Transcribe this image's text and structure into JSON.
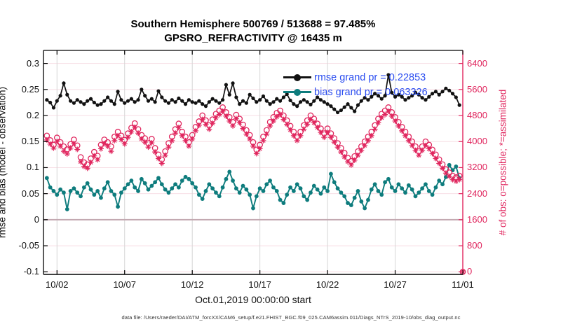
{
  "footer": {
    "text": "data file: /Users/raeder/DAI/ATM_forcXX/CAM6_setup/f.e21.FHIST_BGC.f09_025.CAM6assim.011/Diags_NTrS_2019-10/obs_diag_output.nc"
  },
  "colors": {
    "rmse": "#111111",
    "bias": "#0e7c7d",
    "obs": "#e0265e",
    "legend_text": "#2a4df0",
    "grid_h": "#f7dee4",
    "grid_v": "#d6d6d6",
    "zero_line": "#c2a8b0",
    "axis": "#000000"
  },
  "chart_data": {
    "type": "line+scatter",
    "title": "Southern Hemisphere 500769 / 513688 = 97.485%",
    "subtitle": "GPSRO_REFRACTIVITY @ 16435 m",
    "xlabel": "Oct.01,2019 00:00:00 start",
    "ylabel_left": "rmse and bias (model - observation)",
    "ylabel_right": "# of obs: o=possible; *=assimilated",
    "grand": {
      "rmse": 0.22853,
      "bias": 0.063326
    },
    "x_start_date": "2019-10-01 00:00:00",
    "x_tick_labels": [
      "10/02",
      "10/07",
      "10/12",
      "10/17",
      "10/22",
      "10/27",
      "11/01"
    ],
    "x_tick_days": [
      1,
      6,
      11,
      16,
      21,
      26,
      31
    ],
    "x_range_days": [
      0,
      31
    ],
    "x_start_day": 0.25,
    "x_step_day": 0.25,
    "sample_interval_hours": 6,
    "y_left": {
      "range": [
        -0.1,
        0.3
      ],
      "tick_values": [
        -0.1,
        -0.05,
        0,
        0.05,
        0.1,
        0.15,
        0.2,
        0.25,
        0.3
      ],
      "tick_labels": [
        "-0.1",
        "-0.05",
        "0",
        "0.05",
        "0.1",
        "0.15",
        "0.2",
        "0.25",
        "0.3"
      ]
    },
    "y_right": {
      "range": [
        0,
        6400
      ],
      "tick_values": [
        0,
        800,
        1600,
        2400,
        3200,
        4000,
        4800,
        5600,
        6400
      ],
      "tick_labels": [
        "0",
        "800",
        "1600",
        "2400",
        "3200",
        "4000",
        "4800",
        "5600",
        "6400"
      ]
    },
    "grid": true,
    "legend_position": "upper-right-inside",
    "series": [
      {
        "name": "rmse",
        "legend": "rmse grand pr = 0.22853",
        "axis": "left",
        "style": "line-dot",
        "color": "#111111",
        "values": [
          0.23,
          0.225,
          0.215,
          0.228,
          0.238,
          0.262,
          0.24,
          0.228,
          0.224,
          0.23,
          0.226,
          0.222,
          0.228,
          0.232,
          0.225,
          0.22,
          0.222,
          0.228,
          0.235,
          0.228,
          0.222,
          0.246,
          0.23,
          0.224,
          0.228,
          0.232,
          0.226,
          0.23,
          0.25,
          0.238,
          0.228,
          0.232,
          0.226,
          0.247,
          0.235,
          0.228,
          0.224,
          0.23,
          0.226,
          0.233,
          0.228,
          0.222,
          0.23,
          0.226,
          0.224,
          0.228,
          0.222,
          0.218,
          0.226,
          0.232,
          0.228,
          0.224,
          0.23,
          0.259,
          0.24,
          0.262,
          0.235,
          0.222,
          0.228,
          0.224,
          0.24,
          0.233,
          0.226,
          0.23,
          0.237,
          0.228,
          0.222,
          0.226,
          0.232,
          0.228,
          0.235,
          0.241,
          0.229,
          0.222,
          0.218,
          0.226,
          0.23,
          0.226,
          0.221,
          0.228,
          0.235,
          0.23,
          0.226,
          0.222,
          0.218,
          0.212,
          0.206,
          0.21,
          0.216,
          0.222,
          0.215,
          0.208,
          0.22,
          0.228,
          0.234,
          0.23,
          0.236,
          0.242,
          0.238,
          0.232,
          0.238,
          0.278,
          0.244,
          0.236,
          0.24,
          0.236,
          0.23,
          0.234,
          0.238,
          0.244,
          0.24,
          0.234,
          0.23,
          0.236,
          0.242,
          0.246,
          0.24,
          0.246,
          0.252,
          0.248,
          0.242,
          0.235,
          0.22
        ]
      },
      {
        "name": "bias",
        "legend": "bias grand pr = 0.063326",
        "axis": "left",
        "style": "line-dot",
        "color": "#0e7c7d",
        "values": [
          0.08,
          0.062,
          0.055,
          0.048,
          0.058,
          0.052,
          0.02,
          0.055,
          0.06,
          0.052,
          0.045,
          0.062,
          0.07,
          0.058,
          0.048,
          0.055,
          0.042,
          0.06,
          0.072,
          0.055,
          0.048,
          0.025,
          0.052,
          0.06,
          0.068,
          0.075,
          0.062,
          0.055,
          0.078,
          0.07,
          0.058,
          0.065,
          0.072,
          0.08,
          0.068,
          0.058,
          0.052,
          0.06,
          0.068,
          0.062,
          0.075,
          0.082,
          0.078,
          0.07,
          0.062,
          0.048,
          0.04,
          0.055,
          0.068,
          0.06,
          0.052,
          0.045,
          0.062,
          0.078,
          0.092,
          0.075,
          0.06,
          0.052,
          0.065,
          0.058,
          0.048,
          0.022,
          0.045,
          0.06,
          0.055,
          0.068,
          0.075,
          0.062,
          0.055,
          0.038,
          0.032,
          0.048,
          0.062,
          0.055,
          0.068,
          0.06,
          0.045,
          0.038,
          0.052,
          0.065,
          0.058,
          0.05,
          0.062,
          0.055,
          0.088,
          0.072,
          0.06,
          0.052,
          0.045,
          0.032,
          0.028,
          0.042,
          0.055,
          0.035,
          0.022,
          0.038,
          0.058,
          0.068,
          0.055,
          0.048,
          0.072,
          0.078,
          0.062,
          0.055,
          0.068,
          0.06,
          0.052,
          0.066,
          0.058,
          0.045,
          0.052,
          0.06,
          0.068,
          0.055,
          0.048,
          0.062,
          0.075,
          0.068,
          0.082,
          0.105,
          0.095,
          0.102,
          0.08
        ]
      },
      {
        "name": "obs_possible",
        "legend": "o = possible",
        "axis": "right",
        "style": "scatter-circle",
        "color": "#e0265e",
        "values": [
          4180,
          4040,
          3900,
          4120,
          3980,
          3850,
          3760,
          3920,
          4060,
          3880,
          3520,
          3360,
          3300,
          3480,
          3680,
          3560,
          3900,
          4060,
          3980,
          3850,
          4150,
          4300,
          4180,
          4050,
          4250,
          4420,
          4560,
          4380,
          4200,
          4100,
          3950,
          4080,
          3800,
          3600,
          3450,
          3700,
          3950,
          4150,
          4380,
          4550,
          4300,
          4150,
          3980,
          4200,
          4450,
          4620,
          4800,
          4650,
          4500,
          4680,
          4850,
          4950,
          5050,
          4900,
          4750,
          4600,
          4820,
          4700,
          4520,
          4350,
          4200,
          3980,
          3750,
          3900,
          4150,
          4350,
          4600,
          4750,
          4880,
          4950,
          4800,
          4650,
          4480,
          4300,
          4150,
          4300,
          4500,
          4650,
          4800,
          4700,
          4550,
          4400,
          4250,
          4400,
          4250,
          4100,
          3950,
          3800,
          3650,
          3500,
          3400,
          3550,
          3700,
          3850,
          4000,
          4150,
          4300,
          4500,
          4700,
          4850,
          4950,
          5050,
          4900,
          4750,
          4600,
          4450,
          4300,
          4150,
          4000,
          3850,
          3700,
          3850,
          4000,
          3900,
          3750,
          3600,
          3450,
          3300,
          3150,
          3050,
          2950,
          2900,
          2950,
          0
        ]
      },
      {
        "name": "obs_assimilated",
        "legend": "* = assimilated",
        "axis": "right",
        "style": "scatter-asterisk",
        "color": "#e0265e",
        "values": [
          4050,
          3920,
          3800,
          4000,
          3860,
          3700,
          3620,
          3800,
          3940,
          3760,
          3380,
          3240,
          3180,
          3360,
          3560,
          3440,
          3780,
          3940,
          3860,
          3700,
          4030,
          4180,
          4060,
          3930,
          4130,
          4300,
          4440,
          4260,
          4080,
          3980,
          3830,
          3960,
          3680,
          3480,
          3330,
          3580,
          3830,
          4030,
          4260,
          4430,
          4180,
          4030,
          3860,
          4080,
          4330,
          4500,
          4680,
          4530,
          4380,
          4560,
          4730,
          4830,
          4930,
          4780,
          4630,
          4480,
          4700,
          4580,
          4400,
          4230,
          4080,
          3860,
          3630,
          3780,
          4030,
          4230,
          4480,
          4630,
          4760,
          4830,
          4680,
          4530,
          4360,
          4180,
          4030,
          4180,
          4380,
          4530,
          4680,
          4580,
          4430,
          4280,
          4130,
          4280,
          4130,
          3980,
          3830,
          3680,
          3530,
          3380,
          3280,
          3430,
          3580,
          3730,
          3880,
          4030,
          4180,
          4380,
          4580,
          4730,
          4830,
          4930,
          4780,
          4630,
          4480,
          4330,
          4180,
          4030,
          3880,
          3730,
          3580,
          3730,
          3880,
          3780,
          3630,
          3480,
          3330,
          3180,
          3030,
          2930,
          2830,
          2780,
          2830,
          0
        ]
      }
    ]
  }
}
